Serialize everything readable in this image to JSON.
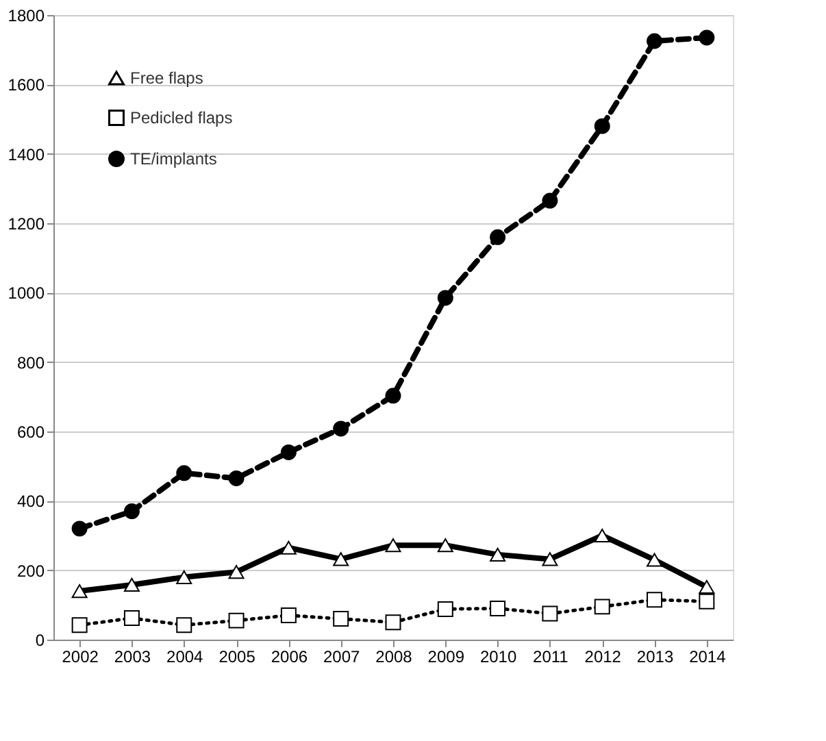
{
  "chart_data": {
    "type": "line",
    "categories": [
      "2002",
      "2003",
      "2004",
      "2005",
      "2006",
      "2007",
      "2008",
      "2009",
      "2010",
      "2011",
      "2012",
      "2013",
      "2014"
    ],
    "series": [
      {
        "name": "Free flaps",
        "color": "#000000",
        "line_style": "solid",
        "marker": "triangle",
        "values": [
          140,
          158,
          180,
          195,
          265,
          232,
          272,
          272,
          245,
          232,
          300,
          230,
          152
        ]
      },
      {
        "name": "Pedicled flaps",
        "color": "#000000",
        "line_style": "dotted",
        "marker": "square",
        "values": [
          42,
          62,
          42,
          55,
          70,
          60,
          50,
          88,
          90,
          75,
          95,
          115,
          110
        ]
      },
      {
        "name": "TE/implants",
        "color": "#000000",
        "line_style": "dashed",
        "marker": "circle",
        "values": [
          320,
          370,
          480,
          465,
          540,
          608,
          703,
          985,
          1160,
          1265,
          1480,
          1725,
          1735
        ]
      }
    ],
    "ylim": [
      0,
      1800
    ],
    "yticks": [
      0,
      200,
      400,
      600,
      800,
      1000,
      1200,
      1400,
      1600,
      1800
    ],
    "grid": "y",
    "legend": "top left"
  }
}
